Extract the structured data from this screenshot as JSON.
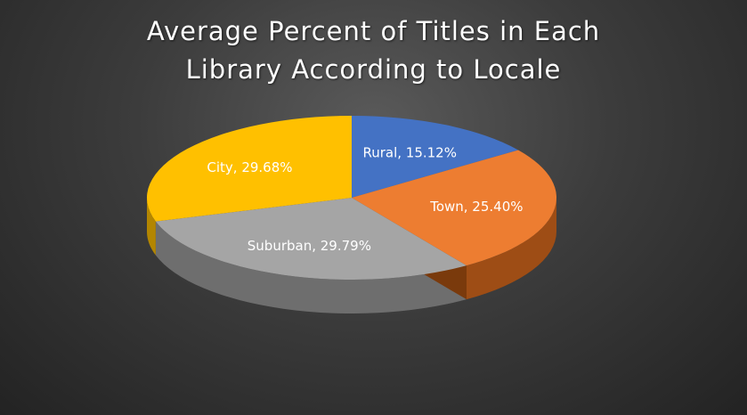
{
  "chart_data": {
    "type": "pie",
    "title_lines": [
      "Average Percent of Titles in Each",
      "Library According to Locale"
    ],
    "slices": [
      {
        "label": "Rural",
        "value": 15.12,
        "data_label": "Rural, 15.12%",
        "color": "#4472C4",
        "side_color": "#2f5597"
      },
      {
        "label": "Town",
        "value": 25.4,
        "data_label": "Town, 25.40%",
        "color": "#ED7D31",
        "side_color": "#9e4d15"
      },
      {
        "label": "Suburban",
        "value": 29.79,
        "data_label": "Suburban, 29.79%",
        "color": "#A5A5A5",
        "side_color": "#6e6e6e"
      },
      {
        "label": "City",
        "value": 29.68,
        "data_label": "City, 29.68%",
        "color": "#FFC000",
        "side_color": "#b38600"
      }
    ],
    "three_d": true,
    "legend": "none"
  }
}
